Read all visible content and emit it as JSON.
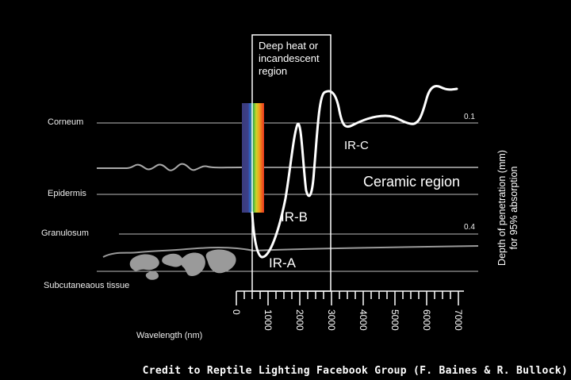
{
  "box_title": [
    "Deep heat or",
    "incandescent",
    "region"
  ],
  "layers": {
    "corneum": "Corneum",
    "epidermis": "Epidermis",
    "granulosum": "Granulosum",
    "subcutaneous": "Subcutaneaous tissue"
  },
  "regions": {
    "ir_a": "IR-A",
    "ir_b": "IR-B",
    "ir_c": "IR-C",
    "ceramic": "Ceramic region"
  },
  "depth_values": {
    "top": "0.1",
    "bottom": "0.4"
  },
  "y_axis_title": [
    "Depth of penetration (mm)",
    "for 95% absorption"
  ],
  "x_axis_title": "Wavelength (nm)",
  "x_ticks": [
    "0",
    "1000",
    "2000",
    "3000",
    "4000",
    "5000",
    "6000",
    "7000"
  ],
  "credit": "Credit to Reptile Lighting Facebook Group (F. Baines & R. Bullock)"
}
